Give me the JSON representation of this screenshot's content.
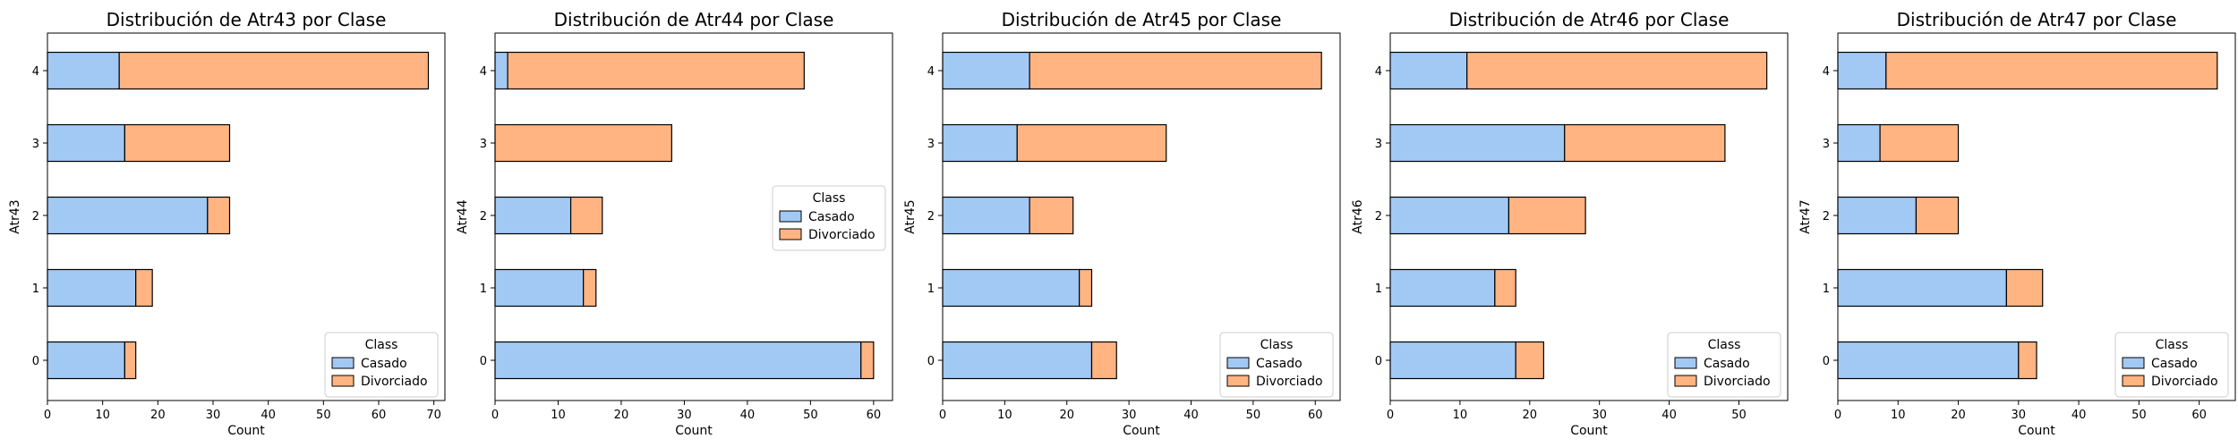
{
  "colors": {
    "casado": "#a1c9f4",
    "divorciado": "#ffb482",
    "edge": "#000000"
  },
  "chart_data": [
    {
      "type": "bar",
      "orientation": "horizontal",
      "stacked": true,
      "title": "Distribución de Atr43 por Clase",
      "xlabel": "Count",
      "ylabel": "Atr43",
      "categories": [
        "0",
        "1",
        "2",
        "3",
        "4"
      ],
      "xlim": [
        0,
        72
      ],
      "xticks": [
        "0",
        "10",
        "20",
        "30",
        "40",
        "50",
        "60",
        "70"
      ],
      "legend": {
        "title": "Class",
        "location": "lower-right"
      },
      "series": [
        {
          "name": "Casado",
          "values": [
            14,
            16,
            29,
            14,
            13
          ]
        },
        {
          "name": "Divorciado",
          "values": [
            2,
            3,
            4,
            19,
            56
          ]
        }
      ]
    },
    {
      "type": "bar",
      "orientation": "horizontal",
      "stacked": true,
      "title": "Distribución de Atr44 por Clase",
      "xlabel": "Count",
      "ylabel": "Atr44",
      "categories": [
        "0",
        "1",
        "2",
        "3",
        "4"
      ],
      "xlim": [
        0,
        63
      ],
      "xticks": [
        "0",
        "10",
        "20",
        "30",
        "40",
        "50",
        "60"
      ],
      "legend": {
        "title": "Class",
        "location": "center-right"
      },
      "series": [
        {
          "name": "Casado",
          "values": [
            58,
            14,
            12,
            0,
            2
          ]
        },
        {
          "name": "Divorciado",
          "values": [
            2,
            2,
            5,
            28,
            47
          ]
        }
      ]
    },
    {
      "type": "bar",
      "orientation": "horizontal",
      "stacked": true,
      "title": "Distribución de Atr45 por Clase",
      "xlabel": "Count",
      "ylabel": "Atr45",
      "categories": [
        "0",
        "1",
        "2",
        "3",
        "4"
      ],
      "xlim": [
        0,
        64
      ],
      "xticks": [
        "0",
        "10",
        "20",
        "30",
        "40",
        "50",
        "60"
      ],
      "legend": {
        "title": "Class",
        "location": "lower-right"
      },
      "series": [
        {
          "name": "Casado",
          "values": [
            24,
            22,
            14,
            12,
            14
          ]
        },
        {
          "name": "Divorciado",
          "values": [
            4,
            2,
            7,
            24,
            47
          ]
        }
      ]
    },
    {
      "type": "bar",
      "orientation": "horizontal",
      "stacked": true,
      "title": "Distribución de Atr46 por Clase",
      "xlabel": "Count",
      "ylabel": "Atr46",
      "categories": [
        "0",
        "1",
        "2",
        "3",
        "4"
      ],
      "xlim": [
        0,
        57
      ],
      "xticks": [
        "0",
        "10",
        "20",
        "30",
        "40",
        "50"
      ],
      "legend": {
        "title": "Class",
        "location": "lower-right"
      },
      "series": [
        {
          "name": "Casado",
          "values": [
            18,
            15,
            17,
            25,
            11
          ]
        },
        {
          "name": "Divorciado",
          "values": [
            4,
            3,
            11,
            23,
            43
          ]
        }
      ]
    },
    {
      "type": "bar",
      "orientation": "horizontal",
      "stacked": true,
      "title": "Distribución de Atr47 por Clase",
      "xlabel": "Count",
      "ylabel": "Atr47",
      "categories": [
        "0",
        "1",
        "2",
        "3",
        "4"
      ],
      "xlim": [
        0,
        66
      ],
      "xticks": [
        "0",
        "10",
        "20",
        "30",
        "40",
        "50",
        "60"
      ],
      "legend": {
        "title": "Class",
        "location": "lower-right"
      },
      "series": [
        {
          "name": "Casado",
          "values": [
            30,
            28,
            13,
            7,
            8
          ]
        },
        {
          "name": "Divorciado",
          "values": [
            3,
            6,
            7,
            13,
            55
          ]
        }
      ]
    }
  ]
}
